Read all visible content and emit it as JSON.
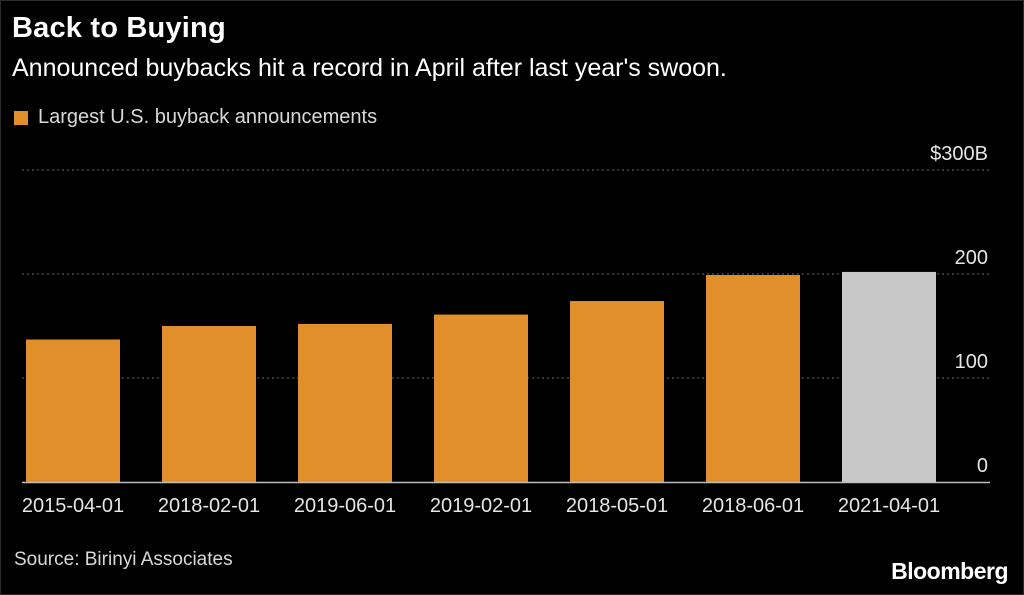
{
  "header": {
    "title": "Back to Buying",
    "subtitle": "Announced buybacks hit a record in April after last year's swoon."
  },
  "legend": {
    "label": "Largest U.S. buyback announcements"
  },
  "footer": {
    "source": "Source: Birinyi Associates",
    "brand": "Bloomberg"
  },
  "colors": {
    "primary_bar": "#e08f2b",
    "highlight_bar": "#c8c8c8",
    "grid": "#666666",
    "background": "#000000"
  },
  "chart_data": {
    "type": "bar",
    "title": "Back to Buying",
    "subtitle": "Announced buybacks hit a record in April after last year's swoon.",
    "categories": [
      "2015-04-01",
      "2018-02-01",
      "2019-06-01",
      "2019-02-01",
      "2018-05-01",
      "2018-06-01",
      "2021-04-01"
    ],
    "series": [
      {
        "name": "Largest U.S. buyback announcements",
        "values": [
          137,
          150,
          152,
          161,
          174,
          199,
          202
        ]
      }
    ],
    "highlight_index": 6,
    "y_ticks": [
      {
        "value": 0,
        "label": "0"
      },
      {
        "value": 100,
        "label": "100"
      },
      {
        "value": 200,
        "label": "200"
      },
      {
        "value": 300,
        "label": "$300B"
      }
    ],
    "ylim": [
      0,
      300
    ],
    "xlabel": "",
    "ylabel": "",
    "grid": true,
    "legend_position": "top-left",
    "y_axis_side": "right"
  }
}
